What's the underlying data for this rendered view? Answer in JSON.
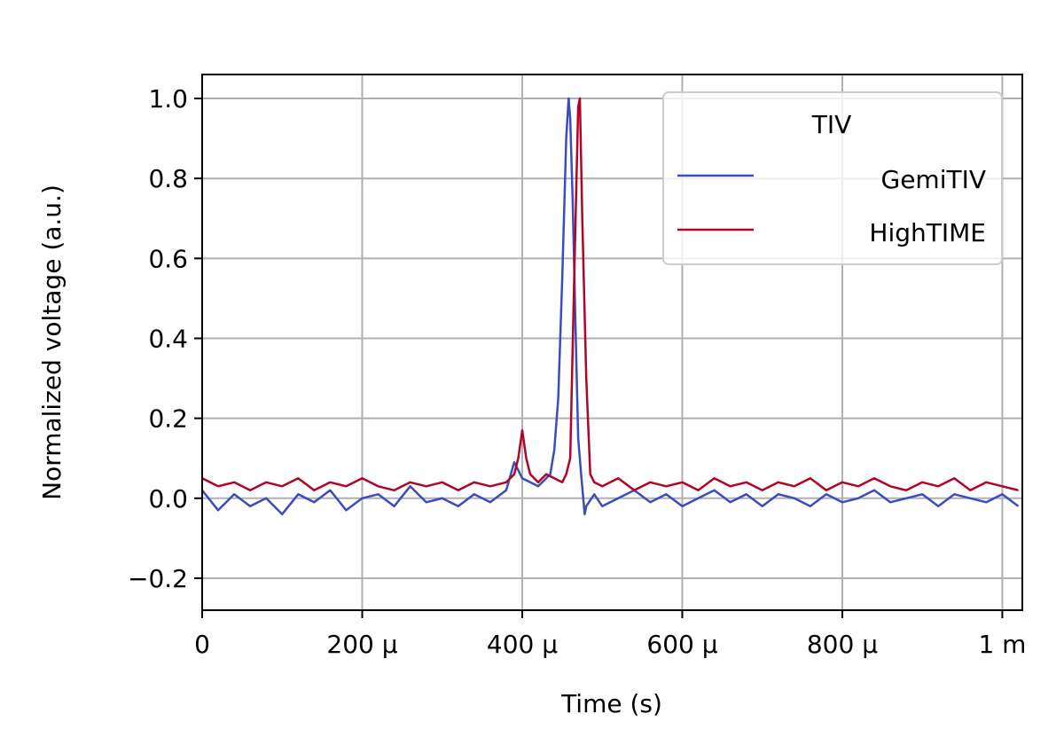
{
  "chart_data": {
    "type": "line",
    "xlabel": "Time (s)",
    "ylabel": "Normalized voltage (a.u.)",
    "xlim": [
      0,
      0.001025
    ],
    "ylim": [
      -0.28,
      1.06
    ],
    "grid": true,
    "x_ticks": [
      {
        "value": 0,
        "label": "0"
      },
      {
        "value": 0.0002,
        "label": "200 μ"
      },
      {
        "value": 0.0004,
        "label": "400 μ"
      },
      {
        "value": 0.0006,
        "label": "600 μ"
      },
      {
        "value": 0.0008,
        "label": "800 μ"
      },
      {
        "value": 0.001,
        "label": "1 m"
      }
    ],
    "y_ticks": [
      {
        "value": -0.2,
        "label": "−0.2"
      },
      {
        "value": 0.0,
        "label": "0.0"
      },
      {
        "value": 0.2,
        "label": "0.2"
      },
      {
        "value": 0.4,
        "label": "0.4"
      },
      {
        "value": 0.6,
        "label": "0.6"
      },
      {
        "value": 0.8,
        "label": "0.8"
      },
      {
        "value": 1.0,
        "label": "1.0"
      }
    ],
    "legend": {
      "title": "TIV",
      "position": "top-right",
      "entries": [
        "GemiTIV",
        "HighTIME"
      ]
    },
    "series": [
      {
        "name": "GemiTIV",
        "color": "#3b4cc0",
        "x": [
          0,
          2e-05,
          4e-05,
          6e-05,
          8e-05,
          0.0001,
          0.00012,
          0.00014,
          0.00016,
          0.00018,
          0.0002,
          0.00022,
          0.00024,
          0.00026,
          0.00028,
          0.0003,
          0.00032,
          0.00034,
          0.00036,
          0.00038,
          0.00039,
          0.0004,
          0.00041,
          0.00042,
          0.00043,
          0.000435,
          0.00044,
          0.000445,
          0.00045,
          0.000455,
          0.000458,
          0.00046,
          0.000463,
          0.000467,
          0.00047,
          0.000474,
          0.000478,
          0.00048,
          0.00049,
          0.0005,
          0.00052,
          0.00054,
          0.00056,
          0.00058,
          0.0006,
          0.00062,
          0.00064,
          0.00066,
          0.00068,
          0.0007,
          0.00072,
          0.00074,
          0.00076,
          0.00078,
          0.0008,
          0.00082,
          0.00084,
          0.00086,
          0.00088,
          0.0009,
          0.00092,
          0.00094,
          0.00096,
          0.00098,
          0.001,
          0.00102
        ],
        "y": [
          0.02,
          -0.03,
          0.01,
          -0.02,
          0.0,
          -0.04,
          0.01,
          -0.01,
          0.02,
          -0.03,
          0.0,
          0.01,
          -0.02,
          0.03,
          -0.01,
          0.0,
          -0.02,
          0.01,
          -0.01,
          0.02,
          0.09,
          0.05,
          0.04,
          0.03,
          0.05,
          0.06,
          0.12,
          0.25,
          0.55,
          0.9,
          1.0,
          0.95,
          0.75,
          0.4,
          0.15,
          0.05,
          -0.04,
          -0.02,
          0.01,
          -0.02,
          0.0,
          0.02,
          -0.01,
          0.01,
          -0.02,
          0.0,
          0.02,
          -0.01,
          0.01,
          -0.02,
          0.01,
          0.0,
          -0.02,
          0.01,
          -0.01,
          0.0,
          0.02,
          -0.01,
          0.0,
          0.01,
          -0.02,
          0.01,
          0.0,
          -0.01,
          0.01,
          -0.02
        ]
      },
      {
        "name": "HighTIME",
        "color": "#b40426",
        "x": [
          0,
          2e-05,
          4e-05,
          6e-05,
          8e-05,
          0.0001,
          0.00012,
          0.00014,
          0.00016,
          0.00018,
          0.0002,
          0.00022,
          0.00024,
          0.00026,
          0.00028,
          0.0003,
          0.00032,
          0.00034,
          0.00036,
          0.00038,
          0.00039,
          0.000395,
          0.0004,
          0.000405,
          0.00041,
          0.00042,
          0.00043,
          0.00044,
          0.00045,
          0.000455,
          0.00046,
          0.000465,
          0.00047,
          0.000472,
          0.000475,
          0.00048,
          0.000485,
          0.00049,
          0.0005,
          0.00052,
          0.00054,
          0.00056,
          0.00058,
          0.0006,
          0.00062,
          0.00064,
          0.00066,
          0.00068,
          0.0007,
          0.00072,
          0.00074,
          0.00076,
          0.00078,
          0.0008,
          0.00082,
          0.00084,
          0.00086,
          0.00088,
          0.0009,
          0.00092,
          0.00094,
          0.00096,
          0.00098,
          0.001,
          0.00102
        ],
        "y": [
          0.05,
          0.03,
          0.04,
          0.02,
          0.04,
          0.03,
          0.05,
          0.02,
          0.04,
          0.03,
          0.05,
          0.03,
          0.02,
          0.04,
          0.03,
          0.04,
          0.02,
          0.04,
          0.03,
          0.04,
          0.06,
          0.1,
          0.17,
          0.1,
          0.06,
          0.04,
          0.06,
          0.05,
          0.04,
          0.06,
          0.1,
          0.55,
          0.98,
          1.0,
          0.7,
          0.3,
          0.06,
          0.04,
          0.03,
          0.05,
          0.02,
          0.04,
          0.03,
          0.04,
          0.02,
          0.05,
          0.03,
          0.04,
          0.02,
          0.04,
          0.03,
          0.05,
          0.02,
          0.04,
          0.03,
          0.05,
          0.03,
          0.02,
          0.04,
          0.03,
          0.05,
          0.02,
          0.04,
          0.03,
          0.02
        ]
      }
    ]
  }
}
